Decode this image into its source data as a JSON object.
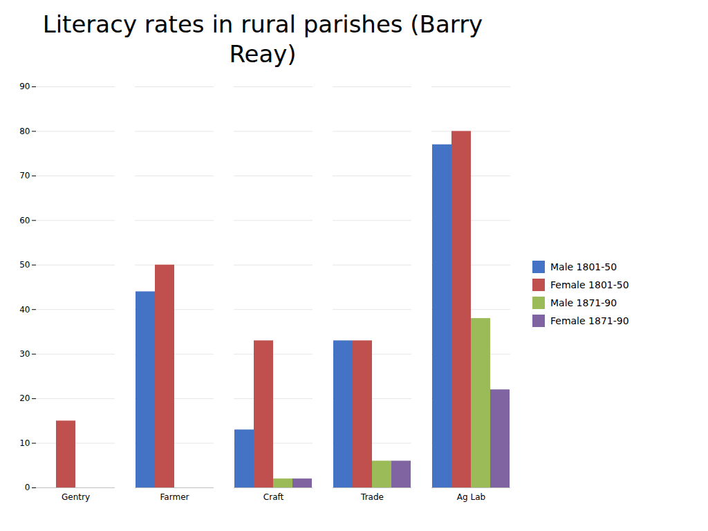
{
  "chart_data": {
    "type": "bar",
    "title": "Literacy rates in rural parishes (Barry\nReay)",
    "categories": [
      "Gentry",
      "Farmer",
      "Craft",
      "Trade",
      "Ag Lab"
    ],
    "series": [
      {
        "name": "Male 1801-50",
        "color": "#4472C4",
        "values": [
          0,
          44,
          13,
          33,
          77
        ]
      },
      {
        "name": "Female 1801-50",
        "color": "#C0504D",
        "values": [
          15,
          50,
          33,
          33,
          80
        ]
      },
      {
        "name": "Male 1871-90",
        "color": "#9BBB59",
        "values": [
          0,
          0,
          2,
          6,
          38
        ]
      },
      {
        "name": "Female 1871-90",
        "color": "#8064A2",
        "values": [
          0,
          0,
          2,
          6,
          22
        ]
      }
    ],
    "ylim": [
      0,
      90
    ],
    "yticks": [
      0,
      10,
      20,
      30,
      40,
      50,
      60,
      70,
      80,
      90
    ],
    "grid": true,
    "legend": "right"
  }
}
